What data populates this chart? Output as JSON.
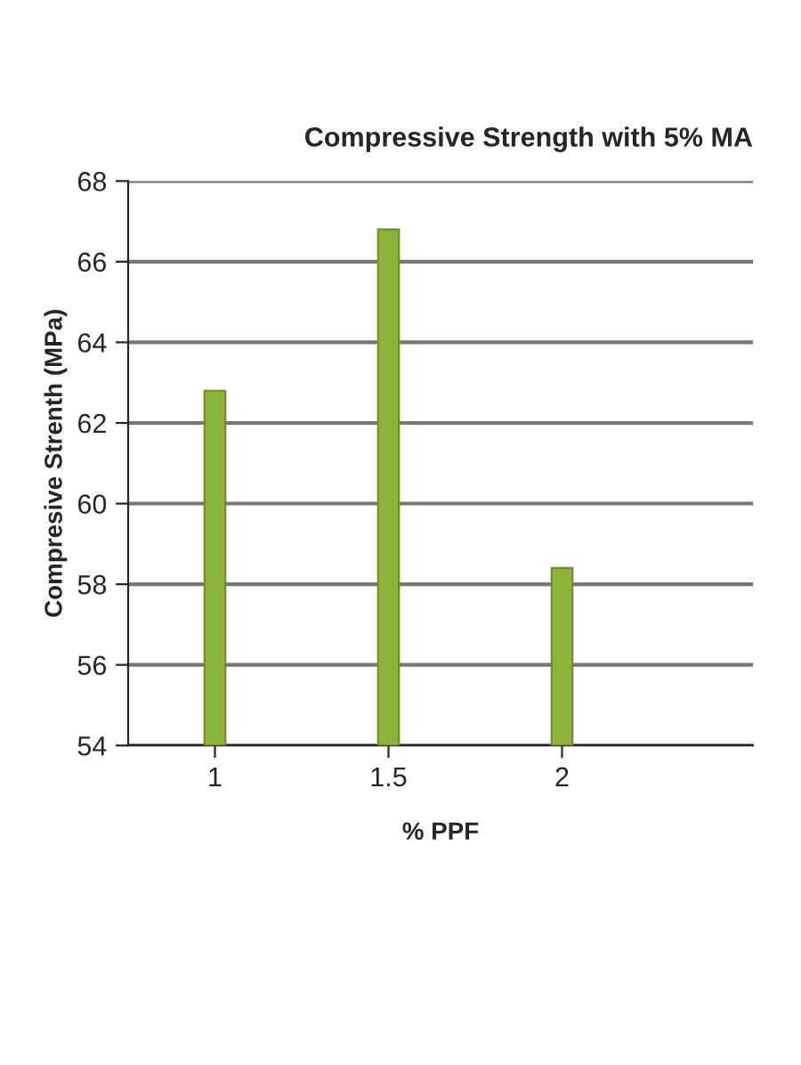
{
  "chart_data": {
    "type": "bar",
    "title": "Compressive Strength with 5% MA",
    "xlabel": "% PPF",
    "ylabel": "Compresive Strenth (MPa)",
    "categories": [
      "1",
      "1.5",
      "2"
    ],
    "series": [
      {
        "color": "#8db33a",
        "values": [
          62.8,
          66.8,
          58.4
        ]
      }
    ],
    "ylim": [
      54,
      68
    ],
    "yticks": [
      54,
      56,
      58,
      60,
      62,
      64,
      66,
      68
    ],
    "grid": "y",
    "legend": false
  }
}
